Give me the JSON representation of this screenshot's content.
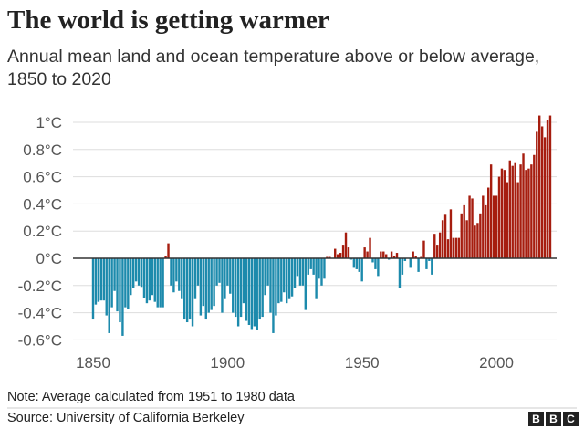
{
  "title": "The world is getting warmer",
  "subtitle": "Annual mean land and ocean temperature above or below average, 1850 to 2020",
  "note": "Note: Average calculated from 1951 to 1980 data",
  "source": "Source: University of California Berkeley",
  "logo": [
    "B",
    "B",
    "C"
  ],
  "colors": {
    "positive": "#a61d0f",
    "negative": "#1c8aac",
    "zero_line": "#333333",
    "grid": "#dddddd"
  },
  "chart_data": {
    "type": "bar",
    "title": "The world is getting warmer",
    "xlabel": "",
    "ylabel": "",
    "x_start": 1850,
    "x_end": 2020,
    "ylim": [
      -0.6,
      1.05
    ],
    "grid": true,
    "y_ticks": [
      {
        "v": 1,
        "label": "1°C"
      },
      {
        "v": 0.8,
        "label": "0.8°C"
      },
      {
        "v": 0.6,
        "label": "0.6°C"
      },
      {
        "v": 0.4,
        "label": "0.4°C"
      },
      {
        "v": 0.2,
        "label": "0.2°C"
      },
      {
        "v": 0,
        "label": "0°C"
      },
      {
        "v": -0.2,
        "label": "-0.2°C"
      },
      {
        "v": -0.4,
        "label": "-0.4°C"
      },
      {
        "v": -0.6,
        "label": "-0.6°C"
      }
    ],
    "x_ticks": [
      {
        "v": 1850,
        "label": "1850"
      },
      {
        "v": 1900,
        "label": "1900"
      },
      {
        "v": 1950,
        "label": "1950"
      },
      {
        "v": 2000,
        "label": "2000"
      }
    ],
    "values": [
      -0.45,
      -0.34,
      -0.32,
      -0.31,
      -0.31,
      -0.42,
      -0.55,
      -0.36,
      -0.24,
      -0.39,
      -0.47,
      -0.57,
      -0.36,
      -0.37,
      -0.27,
      -0.22,
      -0.17,
      -0.2,
      -0.21,
      -0.29,
      -0.33,
      -0.31,
      -0.27,
      -0.32,
      -0.36,
      -0.36,
      -0.36,
      0.02,
      0.11,
      -0.2,
      -0.25,
      -0.17,
      -0.24,
      -0.3,
      -0.45,
      -0.47,
      -0.45,
      -0.5,
      -0.3,
      -0.2,
      -0.42,
      -0.35,
      -0.45,
      -0.4,
      -0.38,
      -0.35,
      -0.2,
      -0.18,
      -0.4,
      -0.3,
      -0.2,
      -0.26,
      -0.4,
      -0.43,
      -0.5,
      -0.43,
      -0.33,
      -0.46,
      -0.49,
      -0.52,
      -0.5,
      -0.53,
      -0.45,
      -0.43,
      -0.27,
      -0.2,
      -0.4,
      -0.55,
      -0.42,
      -0.33,
      -0.32,
      -0.25,
      -0.33,
      -0.3,
      -0.28,
      -0.22,
      -0.13,
      -0.2,
      -0.2,
      -0.38,
      -0.12,
      -0.08,
      -0.12,
      -0.3,
      -0.15,
      -0.2,
      -0.15,
      0.01,
      0.01,
      0.0,
      0.07,
      0.03,
      0.04,
      0.1,
      0.19,
      0.08,
      -0.01,
      -0.07,
      -0.08,
      -0.1,
      -0.17,
      0.08,
      0.05,
      0.15,
      -0.03,
      -0.08,
      -0.13,
      0.05,
      0.05,
      0.03,
      -0.01,
      0.05,
      0.02,
      0.04,
      -0.22,
      -0.12,
      -0.02,
      0.0,
      -0.07,
      0.05,
      0.02,
      -0.1,
      0.01,
      0.13,
      -0.08,
      -0.02,
      -0.12,
      0.18,
      0.1,
      0.19,
      0.28,
      0.32,
      0.14,
      0.36,
      0.15,
      0.15,
      0.15,
      0.33,
      0.39,
      0.28,
      0.46,
      0.44,
      0.24,
      0.26,
      0.33,
      0.46,
      0.39,
      0.52,
      0.69,
      0.46,
      0.46,
      0.6,
      0.66,
      0.65,
      0.56,
      0.72,
      0.68,
      0.7,
      0.56,
      0.69,
      0.77,
      0.65,
      0.66,
      0.69,
      0.76,
      0.93,
      1.05,
      0.97,
      0.89,
      1.02,
      1.05
    ]
  }
}
